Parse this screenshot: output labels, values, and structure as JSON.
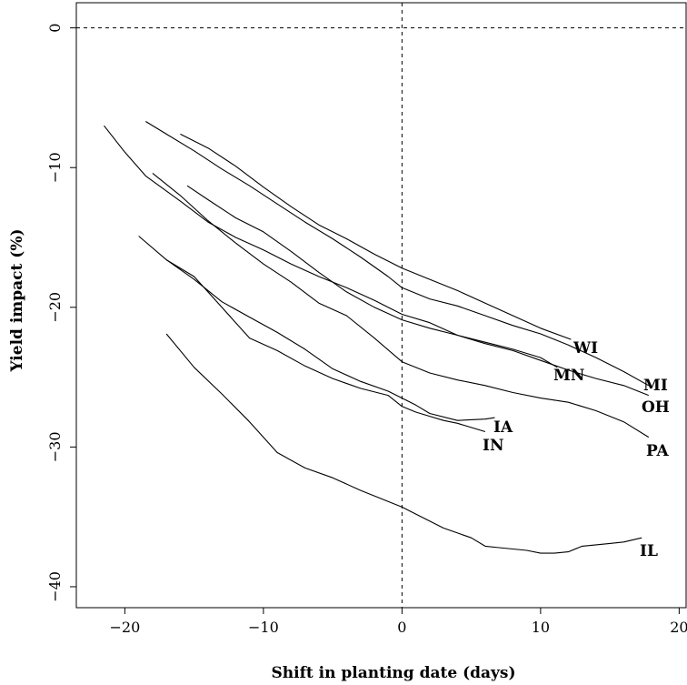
{
  "chart_data": {
    "type": "line",
    "title": "",
    "xlabel": "Shift in planting date (days)",
    "ylabel": "Yield impact (%)",
    "xlim": [
      -23.5,
      20.5
    ],
    "ylim": [
      -41.5,
      1.8
    ],
    "xticks": [
      -20,
      -10,
      0,
      10,
      20
    ],
    "yticks": [
      0,
      -10,
      -20,
      -30,
      -40
    ],
    "xtick_labels": [
      "−20",
      "−10",
      "0",
      "10",
      "20"
    ],
    "ytick_labels": [
      "0",
      "−10",
      "−20",
      "−30",
      "−40"
    ],
    "reference_lines": {
      "hline": 0,
      "vline": 0,
      "style": "dashed"
    },
    "grid": false,
    "legend": "none (series labelled at line ends)",
    "series": [
      {
        "name": "WI",
        "x": [
          -16,
          -14,
          -12,
          -10,
          -8,
          -6,
          -4,
          -2,
          0,
          2,
          4,
          6,
          8,
          10,
          12.2
        ],
        "y": [
          -7.6,
          -8.6,
          -9.9,
          -11.4,
          -12.8,
          -14.1,
          -15.1,
          -16.2,
          -17.2,
          -18.0,
          -18.8,
          -19.7,
          -20.6,
          -21.5,
          -22.3
        ]
      },
      {
        "name": "MI",
        "x": [
          -18.5,
          -17,
          -15,
          -13,
          -11,
          -9,
          -7,
          -5,
          -3,
          -1,
          0,
          2,
          4,
          6,
          8,
          10,
          12,
          14,
          16,
          17.8
        ],
        "y": [
          -6.7,
          -7.6,
          -8.8,
          -10.1,
          -11.3,
          -12.6,
          -13.9,
          -15.1,
          -16.4,
          -17.8,
          -18.6,
          -19.4,
          -19.9,
          -20.6,
          -21.3,
          -21.9,
          -22.7,
          -23.6,
          -24.6,
          -25.6
        ]
      },
      {
        "name": "MN",
        "x": [
          -15.5,
          -14,
          -12,
          -10,
          -8,
          -6,
          -4,
          -2,
          0,
          2,
          4,
          6,
          8,
          10,
          11.2
        ],
        "y": [
          -11.3,
          -12.3,
          -13.6,
          -14.6,
          -16.0,
          -17.5,
          -18.9,
          -20.0,
          -20.9,
          -21.5,
          -22.0,
          -22.5,
          -23.0,
          -23.6,
          -24.3
        ]
      },
      {
        "name": "OH",
        "x": [
          -21.5,
          -20,
          -18.5,
          -16,
          -14,
          -12,
          -10,
          -8,
          -6,
          -4,
          -2,
          0,
          2,
          4,
          6,
          8,
          10,
          12,
          14,
          16,
          17.8
        ],
        "y": [
          -7.0,
          -8.9,
          -10.6,
          -12.4,
          -13.9,
          -15.0,
          -15.9,
          -16.9,
          -17.8,
          -18.6,
          -19.5,
          -20.5,
          -21.1,
          -22.0,
          -22.6,
          -23.1,
          -23.8,
          -24.5,
          -25.1,
          -25.6,
          -26.3
        ]
      },
      {
        "name": "PA",
        "x": [
          -18,
          -16,
          -14,
          -12,
          -10,
          -8,
          -6,
          -4,
          -2,
          0,
          2,
          4,
          6,
          8,
          10,
          12,
          14,
          16,
          17.8
        ],
        "y": [
          -10.4,
          -12.0,
          -13.8,
          -15.4,
          -16.9,
          -18.2,
          -19.7,
          -20.6,
          -22.2,
          -23.9,
          -24.7,
          -25.2,
          -25.6,
          -26.1,
          -26.5,
          -26.8,
          -27.4,
          -28.2,
          -29.3
        ]
      },
      {
        "name": "IA",
        "x": [
          -19,
          -17,
          -15,
          -13,
          -11,
          -9,
          -7,
          -5,
          -3,
          -1,
          0,
          1,
          2,
          4,
          6,
          6.7
        ],
        "y": [
          -14.9,
          -16.6,
          -18.0,
          -19.6,
          -20.7,
          -21.8,
          -23.0,
          -24.4,
          -25.3,
          -26.0,
          -26.5,
          -27.0,
          -27.6,
          -28.1,
          -28.0,
          -27.9
        ]
      },
      {
        "name": "IN",
        "x": [
          -17,
          -15,
          -13,
          -11,
          -9,
          -7,
          -5,
          -3,
          -1,
          0,
          1,
          2,
          3,
          4,
          6
        ],
        "y": [
          -16.6,
          -17.8,
          -20.0,
          -22.2,
          -23.1,
          -24.2,
          -25.1,
          -25.8,
          -26.3,
          -27.1,
          -27.5,
          -27.8,
          -28.1,
          -28.3,
          -28.9
        ]
      },
      {
        "name": "IL",
        "x": [
          -17,
          -15,
          -13,
          -11,
          -9,
          -7,
          -5,
          -3,
          -1,
          0,
          1,
          3,
          5,
          6,
          7,
          9,
          10,
          11,
          12,
          13,
          15,
          16,
          17.3
        ],
        "y": [
          -21.9,
          -24.3,
          -26.2,
          -28.2,
          -30.4,
          -31.5,
          -32.2,
          -33.1,
          -33.9,
          -34.3,
          -34.8,
          -35.8,
          -36.5,
          -37.1,
          -37.2,
          -37.4,
          -37.6,
          -37.6,
          -37.5,
          -37.1,
          -36.9,
          -36.8,
          -36.5
        ]
      }
    ]
  }
}
